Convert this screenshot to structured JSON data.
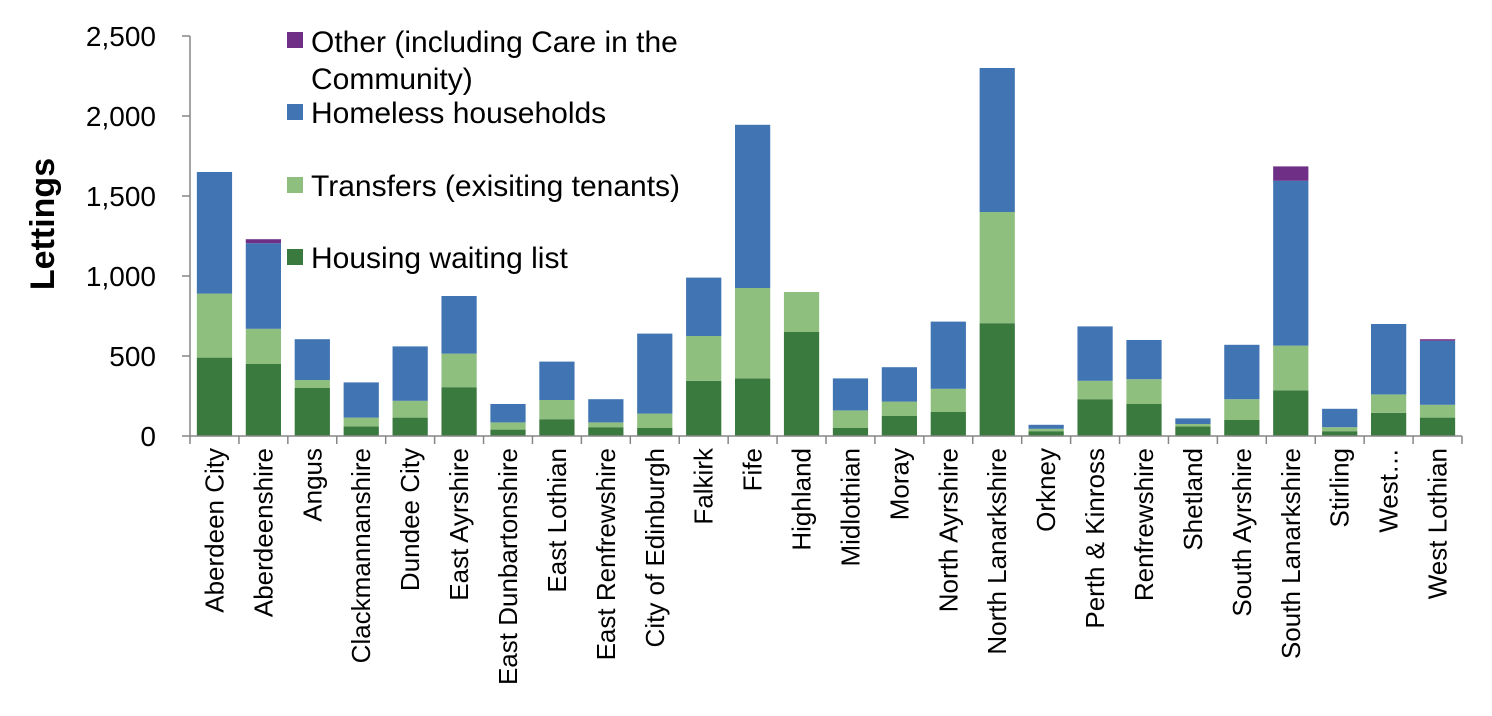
{
  "chart_data": {
    "type": "bar",
    "stacked": true,
    "title": "",
    "xlabel": "",
    "ylabel": "Lettings",
    "ylim": [
      0,
      2500
    ],
    "yticks": [
      0,
      500,
      1000,
      1500,
      2000,
      2500
    ],
    "ytick_labels": [
      "0",
      "500",
      "1,000",
      "1,500",
      "2,000",
      "2,500"
    ],
    "categories": [
      "Aberdeen City",
      "Aberdeenshire",
      "Angus",
      "Clackmannanshire",
      "Dundee City",
      "East Ayrshire",
      "East Dunbartonshire",
      "East Lothian",
      "East Renfrewshire",
      "City of Edinburgh",
      "Falkirk",
      "Fife",
      "Highland",
      "Midlothian",
      "Moray",
      "North Ayrshire",
      "North Lanarkshire",
      "Orkney",
      "Perth & Kinross",
      "Renfrewshire",
      "Shetland",
      "South Ayrshire",
      "South Lanarkshire",
      "Stirling",
      "West…",
      "West Lothian"
    ],
    "series": [
      {
        "name": "Housing waiting list",
        "color": "#3a7a3e",
        "values": [
          490,
          450,
          300,
          60,
          115,
          305,
          40,
          105,
          55,
          50,
          345,
          360,
          650,
          50,
          125,
          150,
          705,
          30,
          230,
          200,
          60,
          100,
          285,
          30,
          145,
          115
        ]
      },
      {
        "name": "Transfers (exisiting tenants)",
        "color": "#8fbf7e",
        "values": [
          400,
          220,
          50,
          55,
          105,
          210,
          45,
          120,
          30,
          90,
          280,
          565,
          250,
          110,
          90,
          145,
          695,
          15,
          115,
          155,
          15,
          130,
          280,
          25,
          115,
          80
        ]
      },
      {
        "name": "Homeless households",
        "color": "#4174b3",
        "values": [
          760,
          535,
          255,
          220,
          340,
          360,
          115,
          240,
          145,
          500,
          365,
          1020,
          0,
          200,
          215,
          420,
          900,
          25,
          340,
          245,
          35,
          340,
          1030,
          115,
          440,
          400
        ]
      },
      {
        "name": "Other (including Care in the Community)",
        "color": "#6f2f87",
        "values": [
          0,
          25,
          0,
          0,
          0,
          0,
          0,
          0,
          0,
          0,
          0,
          0,
          0,
          0,
          0,
          0,
          0,
          0,
          0,
          0,
          0,
          0,
          90,
          0,
          0,
          10
        ]
      }
    ],
    "legend_order": [
      "Other (including Care in the Community)",
      "Homeless households",
      "Transfers (exisiting tenants)",
      "Housing waiting list"
    ],
    "legend_labels": {
      "other_line1": "Other (including Care in the",
      "other_line2": "Community)",
      "homeless": "Homeless households",
      "transfers": "Transfers (exisiting tenants)",
      "waiting": "Housing waiting list"
    },
    "legend_position": "top-left",
    "grid": false
  }
}
